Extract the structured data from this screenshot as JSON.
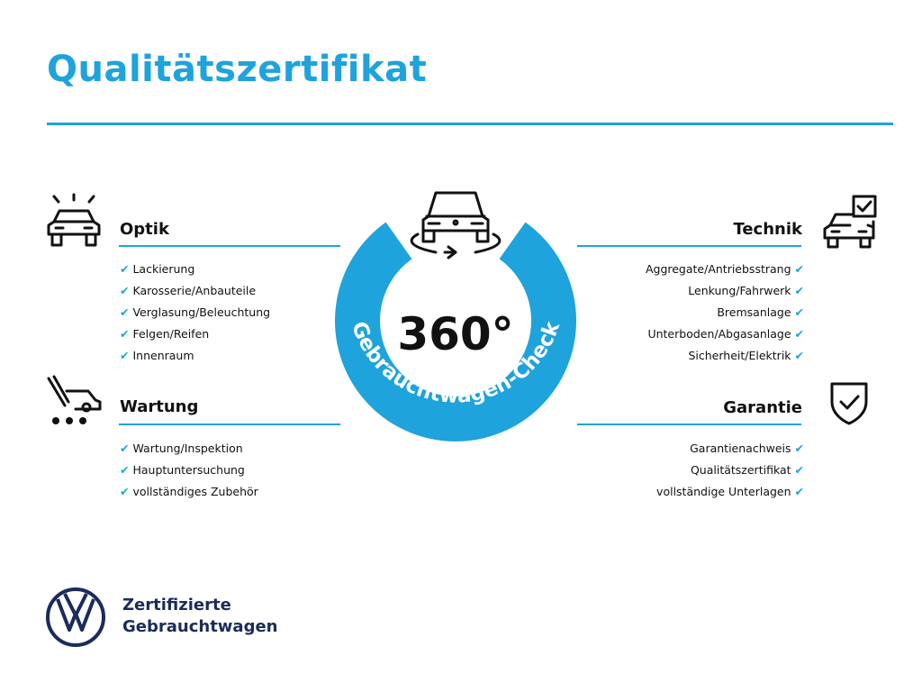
{
  "title": "Qualitätszertifikat",
  "colors": {
    "accent": "#1ea3dc",
    "brand_navy": "#1b2b5a"
  },
  "center": {
    "degree": "360°",
    "arc_text": "Gebrauchtwagen-Check",
    "icon": "car-rotate-icon"
  },
  "sections": {
    "optik": {
      "title": "Optik",
      "icon": "car-shine-icon",
      "items": [
        "Lackierung",
        "Karosserie/Anbauteile",
        "Verglasung/Beleuchtung",
        "Felgen/Reifen",
        "Innenraum"
      ]
    },
    "technik": {
      "title": "Technik",
      "icon": "car-checklist-icon",
      "items": [
        "Aggregate/Antriebsstrang",
        "Lenkung/Fahrwerk",
        "Bremsanlage",
        "Unterboden/Abgasanlage",
        "Sicherheit/Elektrik"
      ]
    },
    "wartung": {
      "title": "Wartung",
      "icon": "car-service-icon",
      "items": [
        "Wartung/Inspektion",
        "Hauptuntersuchung",
        "vollständiges Zubehör"
      ]
    },
    "garantie": {
      "title": "Garantie",
      "icon": "shield-check-icon",
      "items": [
        "Garantienachweis",
        "Qualitätszertifikat",
        "vollständige Unterlagen"
      ]
    }
  },
  "check_mark": "✔",
  "brand": {
    "line1": "Zertifizierte",
    "line2": "Gebrauchtwagen",
    "logo": "vw-logo"
  }
}
